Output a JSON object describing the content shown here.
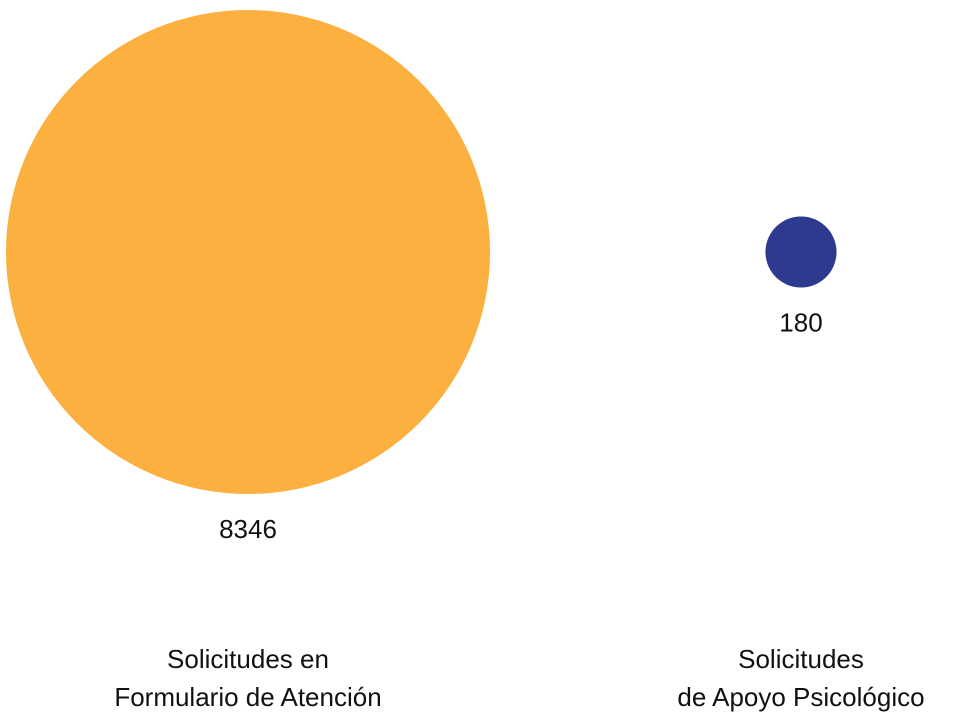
{
  "chart_data": {
    "type": "bubble",
    "categories": [
      "Solicitudes en\nFormulario de Atención",
      "Solicitudes\nde Apoyo Psicológico"
    ],
    "values": [
      8346,
      180
    ],
    "colors": [
      "#fbb040",
      "#2e3a8f"
    ]
  }
}
